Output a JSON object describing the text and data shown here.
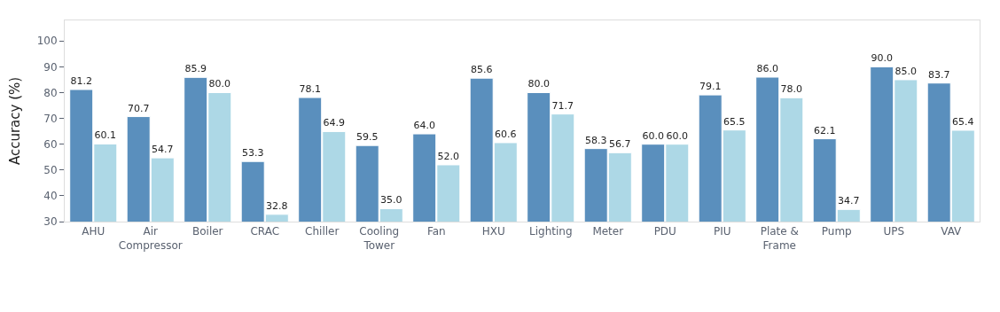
{
  "chart_data": {
    "type": "bar",
    "ylabel": "Accuracy (%)",
    "categories": [
      "AHU",
      "Air\nCompressor",
      "Boiler",
      "CRAC",
      "Chiller",
      "Cooling\nTower",
      "Fan",
      "HXU",
      "Lighting",
      "Meter",
      "PDU",
      "PIU",
      "Plate &\nFrame",
      "Pump",
      "UPS",
      "VAV"
    ],
    "series": [
      {
        "color": "#5a8fbd",
        "values": [
          81.2,
          70.7,
          85.9,
          53.3,
          78.1,
          59.5,
          64.0,
          85.6,
          80.0,
          58.3,
          60.0,
          79.1,
          86.0,
          62.1,
          90.0,
          83.7
        ],
        "value_labels": [
          "81.2",
          "70.7",
          "85.9",
          "53.3",
          "78.1",
          "59.5",
          "64.0",
          "85.6",
          "80.0",
          "58.3",
          "60.0",
          "79.1",
          "86.0",
          "62.1",
          "90.0",
          "83.7"
        ]
      },
      {
        "color": "#add8e6",
        "values": [
          60.1,
          54.7,
          80.0,
          32.8,
          64.9,
          35.0,
          52.0,
          60.6,
          71.7,
          56.7,
          60.0,
          65.5,
          78.0,
          34.7,
          85.0,
          65.4
        ],
        "value_labels": [
          "60.1",
          "54.7",
          "80.0",
          "32.8",
          "64.9",
          "35.0",
          "52.0",
          "60.6",
          "71.7",
          "56.7",
          "60.0",
          "65.5",
          "78.0",
          "34.7",
          "85.0",
          "65.4"
        ]
      }
    ],
    "ylim": [
      30,
      108
    ],
    "yticks": [
      30,
      40,
      50,
      60,
      70,
      80,
      90,
      100
    ],
    "grid": false
  }
}
